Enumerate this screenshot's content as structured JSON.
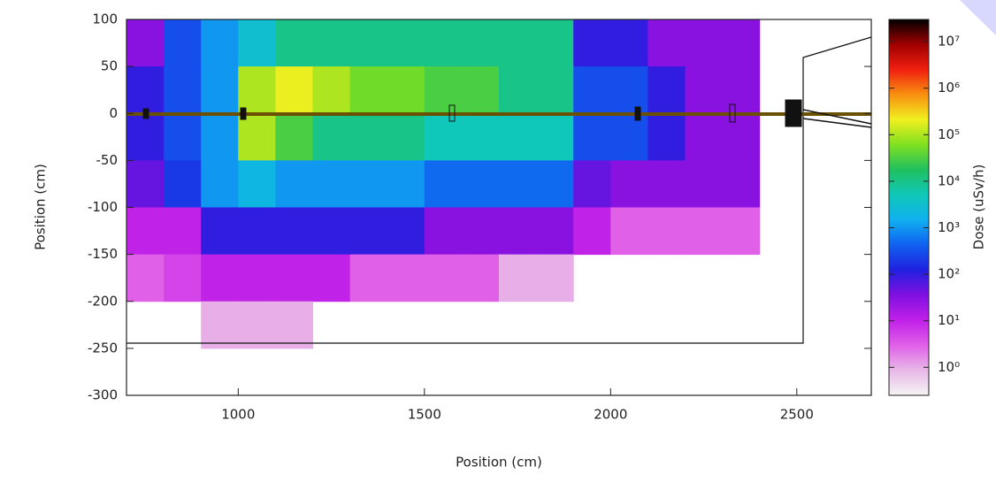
{
  "chart_data": {
    "type": "heatmap",
    "xlabel": "Position (cm)",
    "ylabel": "Position (cm)",
    "zlabel": "Dose (uSv/h)",
    "xlim": [
      700,
      2700
    ],
    "ylim": [
      -300,
      100
    ],
    "xticks": [
      1000,
      1500,
      2000,
      2500
    ],
    "yticks": [
      100,
      50,
      0,
      -50,
      -100,
      -150,
      -200,
      -250,
      -300
    ],
    "xbins": [
      700,
      800,
      900,
      1000,
      1100,
      1200,
      1300,
      1400,
      1500,
      1600,
      1700,
      1800,
      1900,
      2000,
      2100,
      2200,
      2300,
      2400,
      2500,
      2600,
      2700
    ],
    "ybins": [
      100,
      50,
      0,
      -50,
      -100,
      -150,
      -200,
      -250,
      -300
    ],
    "z": [
      [
        30,
        300,
        1000,
        3000,
        10000,
        10000,
        10000,
        10000,
        10000,
        10000,
        10000,
        10000,
        100,
        100,
        30,
        30,
        30,
        null,
        null,
        null
      ],
      [
        100,
        300,
        1000,
        100000,
        200000,
        100000,
        50000,
        50000,
        30000,
        30000,
        10000,
        10000,
        300,
        300,
        100,
        30,
        30,
        null,
        null,
        null
      ],
      [
        100,
        300,
        1000,
        100000,
        30000,
        10000,
        10000,
        10000,
        5000,
        5000,
        5000,
        5000,
        300,
        300,
        100,
        30,
        30,
        null,
        null,
        null
      ],
      [
        50,
        200,
        1000,
        2000,
        1000,
        1000,
        1000,
        1000,
        500,
        500,
        500,
        500,
        50,
        30,
        30,
        30,
        30,
        null,
        null,
        null
      ],
      [
        10,
        10,
        100,
        100,
        100,
        100,
        100,
        100,
        30,
        30,
        30,
        30,
        10,
        3,
        3,
        3,
        3,
        null,
        null,
        null
      ],
      [
        3,
        5,
        10,
        10,
        10,
        10,
        3,
        3,
        3,
        3,
        1,
        1,
        null,
        null,
        null,
        null,
        null,
        null,
        null,
        null
      ],
      [
        null,
        null,
        1,
        1,
        1,
        null,
        null,
        null,
        null,
        null,
        null,
        null,
        null,
        null,
        null,
        null,
        null,
        null,
        null,
        null
      ],
      [
        null,
        null,
        null,
        null,
        null,
        null,
        null,
        null,
        null,
        null,
        null,
        null,
        null,
        null,
        null,
        null,
        null,
        null,
        null,
        null
      ]
    ],
    "zscale": "log",
    "zlim": [
      0.25,
      30000000
    ],
    "zticks": [
      {
        "value": 1,
        "label": "10⁰"
      },
      {
        "value": 10,
        "label": "10¹"
      },
      {
        "value": 100,
        "label": "10²"
      },
      {
        "value": 1000,
        "label": "10³"
      },
      {
        "value": 10000,
        "label": "10⁴"
      },
      {
        "value": 100000,
        "label": "10⁵"
      },
      {
        "value": 1000000,
        "label": "10⁶"
      },
      {
        "value": 10000000,
        "label": "10⁷"
      }
    ],
    "colormap": [
      "#f4f4f4",
      "#e8b8e8",
      "#e060e8",
      "#c020e8",
      "#8010e0",
      "#2020e0",
      "#1060f0",
      "#10b0f0",
      "#10c8b8",
      "#20c060",
      "#80e020",
      "#f0f020",
      "#f89010",
      "#f02010",
      "#a00000",
      "#000000"
    ]
  }
}
